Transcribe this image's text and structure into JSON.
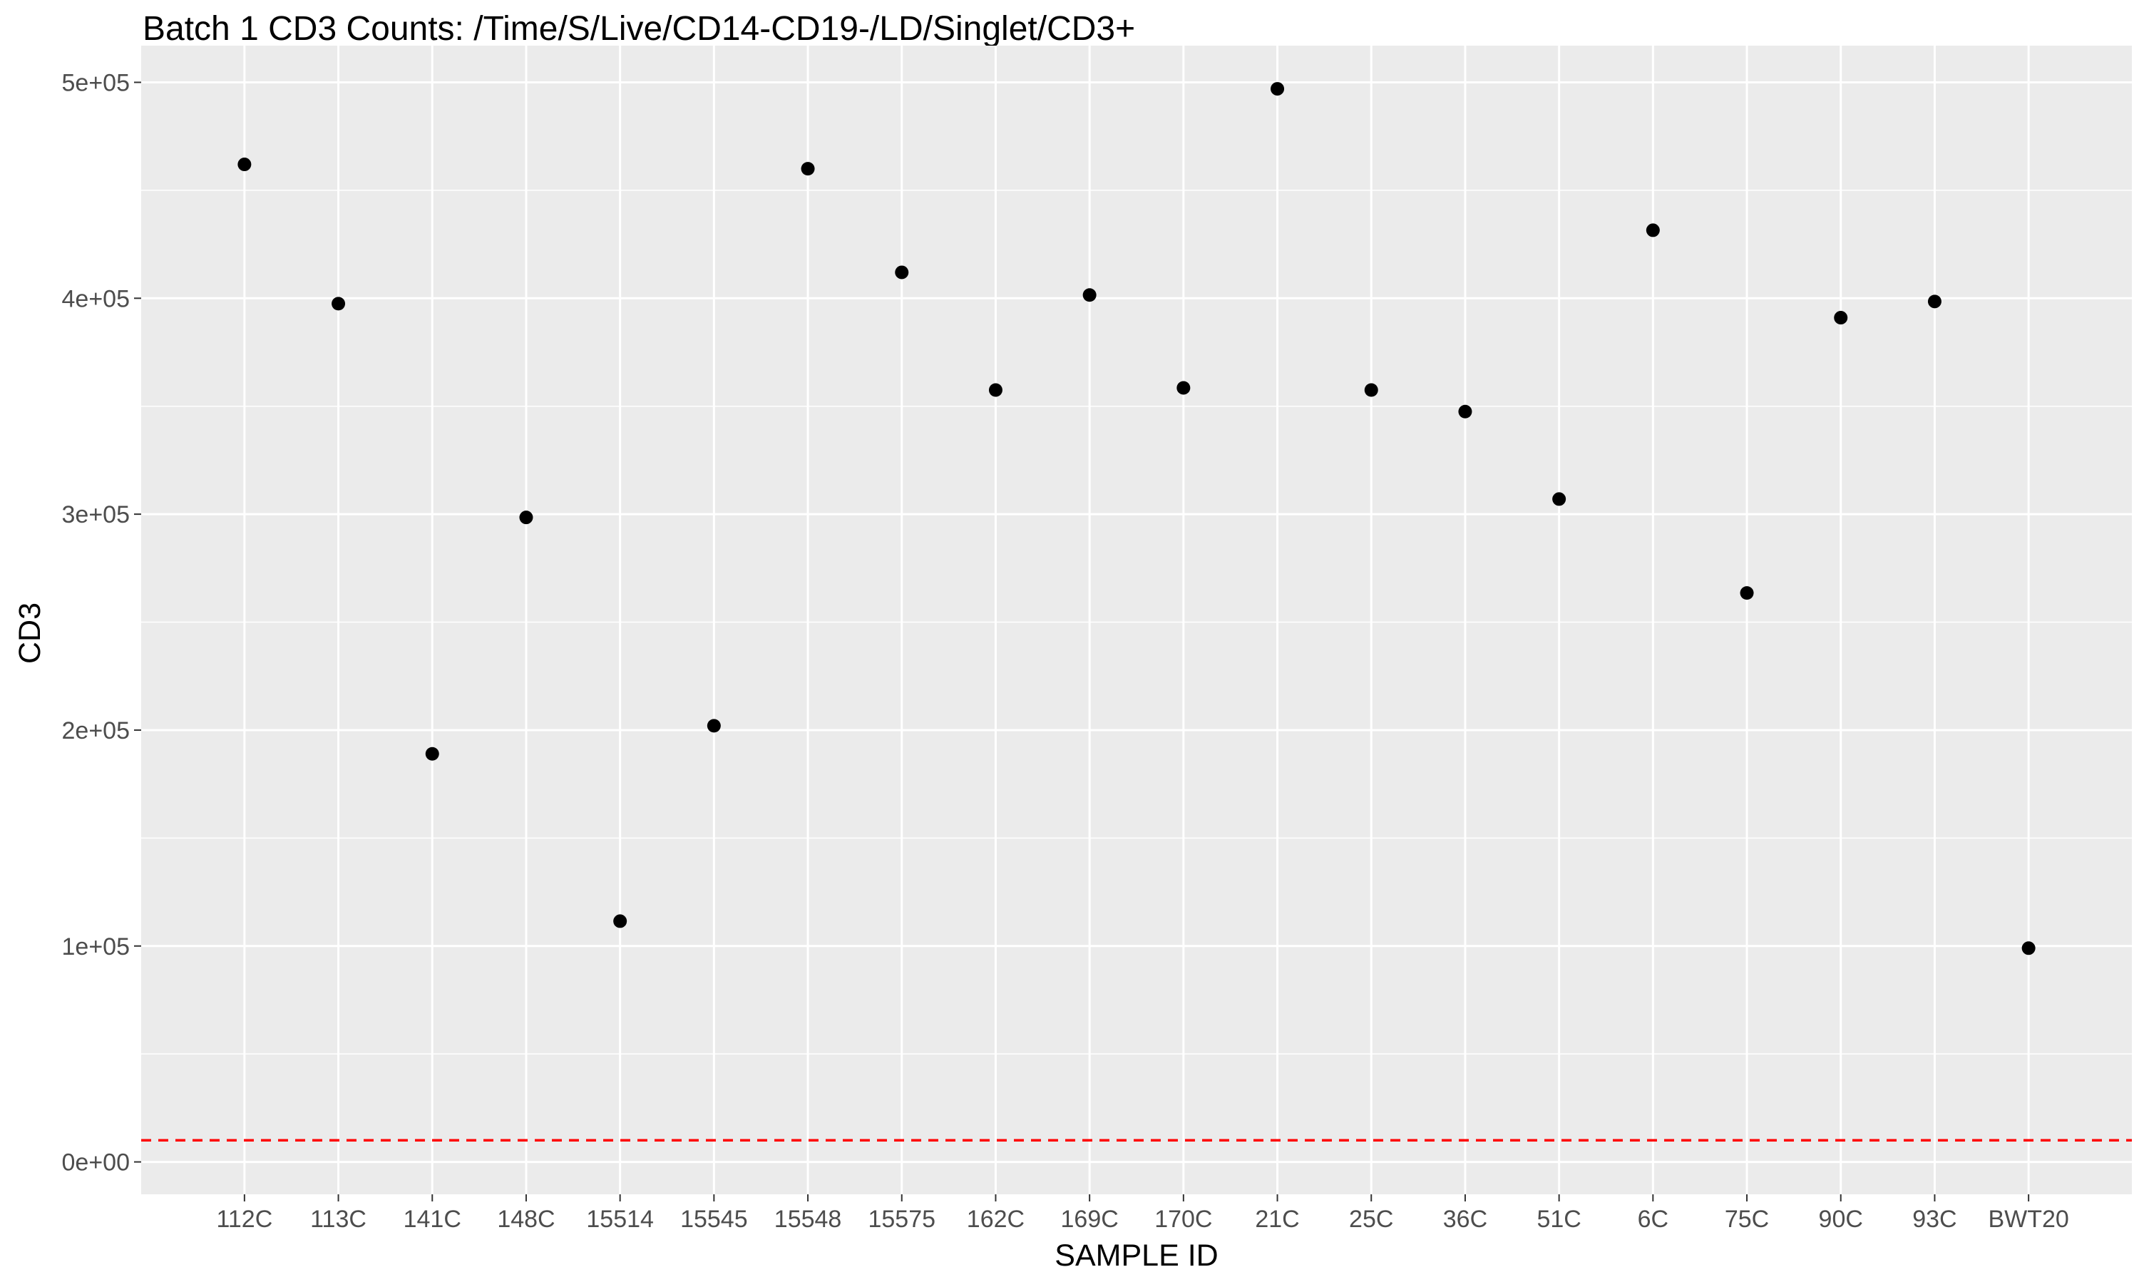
{
  "chart_data": {
    "type": "scatter",
    "title": "Batch 1 CD3 Counts: /Time/S/Live/CD14-CD19-/LD/Singlet/CD3+",
    "xlabel": "SAMPLE ID",
    "ylabel": "CD3",
    "categories": [
      "112C",
      "113C",
      "141C",
      "148C",
      "15514",
      "15545",
      "15548",
      "15575",
      "162C",
      "169C",
      "170C",
      "21C",
      "25C",
      "36C",
      "51C",
      "6C",
      "75C",
      "90C",
      "93C",
      "BWT20"
    ],
    "values": [
      462000,
      397500,
      189000,
      298500,
      111500,
      202000,
      460000,
      412000,
      357500,
      401500,
      358500,
      497000,
      357500,
      347500,
      307000,
      431500,
      263500,
      391000,
      398500,
      99000
    ],
    "ylim": [
      -15000,
      517000
    ],
    "yticks": [
      0,
      100000,
      200000,
      300000,
      400000,
      500000
    ],
    "ytick_labels": [
      "0e+00",
      "1e+05",
      "2e+05",
      "3e+05",
      "4e+05",
      "5e+05"
    ],
    "grid": true,
    "reference_line": {
      "y": 10000,
      "style": "dashed",
      "color": "#ff0000"
    },
    "point_color": "#000000",
    "panel_background": "#ebebeb",
    "grid_color": "#ffffff",
    "legend": "none"
  }
}
